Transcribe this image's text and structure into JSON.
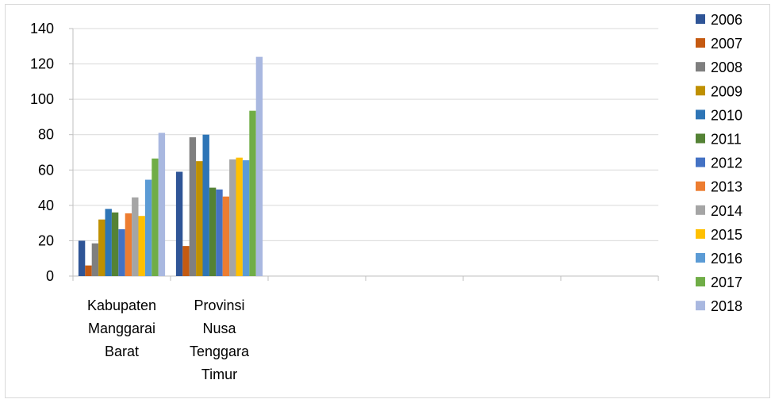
{
  "chart_data": {
    "type": "bar",
    "title": "",
    "xlabel": "",
    "ylabel": "",
    "ylim": [
      0,
      140
    ],
    "yticks": [
      0,
      20,
      40,
      60,
      80,
      100,
      120,
      140
    ],
    "grid": true,
    "legend_position": "right",
    "category_slots": 6,
    "categories": [
      [
        "Kabupaten",
        "Manggarai",
        "Barat"
      ],
      [
        "Provinsi",
        "Nusa",
        "Tenggara",
        "Timur"
      ]
    ],
    "series": [
      {
        "name": "2006",
        "color": "#2f5597",
        "values": [
          20,
          59
        ]
      },
      {
        "name": "2007",
        "color": "#c55a11",
        "values": [
          6,
          17
        ]
      },
      {
        "name": "2008",
        "color": "#7f7f7f",
        "values": [
          18.5,
          78.5
        ]
      },
      {
        "name": "2009",
        "color": "#bf9000",
        "values": [
          32,
          65
        ]
      },
      {
        "name": "2010",
        "color": "#2e75b6",
        "values": [
          38,
          80
        ]
      },
      {
        "name": "2011",
        "color": "#548235",
        "values": [
          36,
          50
        ]
      },
      {
        "name": "2012",
        "color": "#4472c4",
        "values": [
          26.5,
          49
        ]
      },
      {
        "name": "2013",
        "color": "#ed7d31",
        "values": [
          35.5,
          45
        ]
      },
      {
        "name": "2014",
        "color": "#a5a5a5",
        "values": [
          44.5,
          66
        ]
      },
      {
        "name": "2015",
        "color": "#ffc000",
        "values": [
          34,
          67
        ]
      },
      {
        "name": "2016",
        "color": "#5b9bd5",
        "values": [
          54.5,
          65.5
        ]
      },
      {
        "name": "2017",
        "color": "#70ad47",
        "values": [
          66.5,
          93.5
        ]
      },
      {
        "name": "2018",
        "color": "#a9b8e0",
        "values": [
          81,
          124
        ]
      }
    ]
  }
}
